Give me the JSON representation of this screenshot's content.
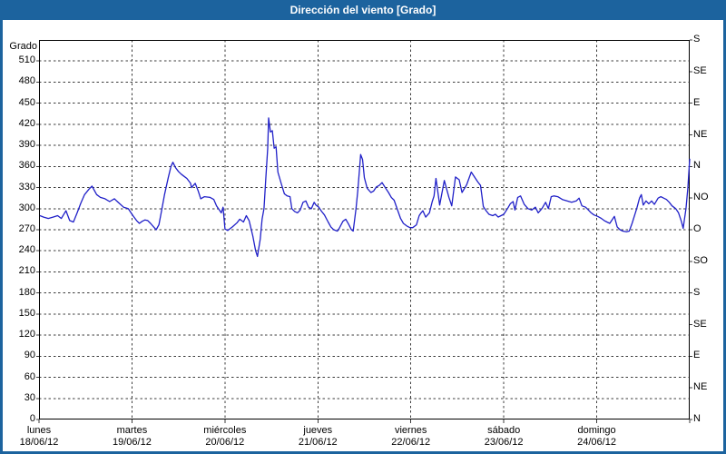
{
  "window": {
    "title": "Dirección del viento [Grado]"
  },
  "colors": {
    "frame_blue": "#1c639e",
    "title_text": "#ffffff",
    "line_blue": "#2020c8",
    "grid_black": "#3c3c3c",
    "background": "#ffffff"
  },
  "chart_data": {
    "type": "line",
    "title": "Dirección del viento [Grado]",
    "ylabel_left": "Grado",
    "ylim": [
      0,
      540
    ],
    "left_tick_step": 30,
    "left_tick_values": [
      510,
      480,
      450,
      420,
      390,
      360,
      330,
      300,
      270,
      240,
      210,
      180,
      150,
      120,
      90,
      60,
      30,
      0
    ],
    "right_axis": {
      "tick_values": [
        540,
        495,
        450,
        405,
        360,
        315,
        270,
        225,
        180,
        135,
        90,
        45,
        0
      ],
      "labels": [
        "S",
        "SE",
        "E",
        "NE",
        "N",
        "NO",
        "O",
        "SO",
        "S",
        "SE",
        "E",
        "NE",
        "N"
      ]
    },
    "x_axis_days": [
      {
        "label": "lunes",
        "date": "18/06/12"
      },
      {
        "label": "martes",
        "date": "19/06/12"
      },
      {
        "label": "miércoles",
        "date": "20/06/12"
      },
      {
        "label": "jueves",
        "date": "21/06/12"
      },
      {
        "label": "viernes",
        "date": "22/06/12"
      },
      {
        "label": "sábado",
        "date": "23/06/12"
      },
      {
        "label": "domingo",
        "date": "24/06/12"
      }
    ],
    "grid": "dashed",
    "legend": "none",
    "series": [
      {
        "name": "Dirección del viento",
        "units": "Grado",
        "points": [
          [
            0.01,
            290
          ],
          [
            0.05,
            288
          ],
          [
            0.1,
            286
          ],
          [
            0.15,
            288
          ],
          [
            0.2,
            290
          ],
          [
            0.24,
            286
          ],
          [
            0.29,
            297
          ],
          [
            0.33,
            283
          ],
          [
            0.37,
            281
          ],
          [
            0.41,
            294
          ],
          [
            0.45,
            308
          ],
          [
            0.49,
            320
          ],
          [
            0.54,
            328
          ],
          [
            0.57,
            332
          ],
          [
            0.62,
            320
          ],
          [
            0.66,
            316
          ],
          [
            0.71,
            314
          ],
          [
            0.76,
            310
          ],
          [
            0.81,
            314
          ],
          [
            0.86,
            308
          ],
          [
            0.91,
            302
          ],
          [
            0.96,
            300
          ],
          [
            1.01,
            290
          ],
          [
            1.05,
            283
          ],
          [
            1.08,
            279
          ],
          [
            1.11,
            282
          ],
          [
            1.14,
            284
          ],
          [
            1.17,
            283
          ],
          [
            1.2,
            279
          ],
          [
            1.24,
            273
          ],
          [
            1.26,
            270
          ],
          [
            1.29,
            277
          ],
          [
            1.32,
            298
          ],
          [
            1.35,
            320
          ],
          [
            1.39,
            344
          ],
          [
            1.42,
            360
          ],
          [
            1.44,
            366
          ],
          [
            1.47,
            358
          ],
          [
            1.5,
            353
          ],
          [
            1.53,
            349
          ],
          [
            1.56,
            346
          ],
          [
            1.59,
            343
          ],
          [
            1.63,
            336
          ],
          [
            1.64,
            330
          ],
          [
            1.68,
            336
          ],
          [
            1.71,
            326
          ],
          [
            1.74,
            314
          ],
          [
            1.78,
            317
          ],
          [
            1.84,
            316
          ],
          [
            1.88,
            313
          ],
          [
            1.91,
            304
          ],
          [
            1.94,
            298
          ],
          [
            1.96,
            294
          ],
          [
            1.98,
            302
          ],
          [
            2.0,
            271
          ],
          [
            2.03,
            269
          ],
          [
            2.08,
            274
          ],
          [
            2.13,
            280
          ],
          [
            2.16,
            285
          ],
          [
            2.2,
            281
          ],
          [
            2.23,
            290
          ],
          [
            2.26,
            283
          ],
          [
            2.3,
            261
          ],
          [
            2.33,
            240
          ],
          [
            2.35,
            232
          ],
          [
            2.38,
            257
          ],
          [
            2.4,
            285
          ],
          [
            2.42,
            300
          ],
          [
            2.44,
            343
          ],
          [
            2.46,
            386
          ],
          [
            2.47,
            429
          ],
          [
            2.49,
            409
          ],
          [
            2.51,
            411
          ],
          [
            2.53,
            386
          ],
          [
            2.55,
            388
          ],
          [
            2.57,
            352
          ],
          [
            2.61,
            334
          ],
          [
            2.64,
            321
          ],
          [
            2.67,
            318
          ],
          [
            2.7,
            317
          ],
          [
            2.72,
            300
          ],
          [
            2.75,
            296
          ],
          [
            2.78,
            294
          ],
          [
            2.81,
            298
          ],
          [
            2.84,
            309
          ],
          [
            2.87,
            311
          ],
          [
            2.9,
            302
          ],
          [
            2.93,
            300
          ],
          [
            2.96,
            309
          ],
          [
            2.98,
            305
          ],
          [
            3.01,
            302
          ],
          [
            3.04,
            296
          ],
          [
            3.07,
            291
          ],
          [
            3.11,
            281
          ],
          [
            3.14,
            274
          ],
          [
            3.17,
            270
          ],
          [
            3.21,
            268
          ],
          [
            3.23,
            272
          ],
          [
            3.27,
            282
          ],
          [
            3.3,
            285
          ],
          [
            3.33,
            278
          ],
          [
            3.36,
            270
          ],
          [
            3.38,
            268
          ],
          [
            3.41,
            300
          ],
          [
            3.43,
            326
          ],
          [
            3.45,
            360
          ],
          [
            3.46,
            377
          ],
          [
            3.48,
            370
          ],
          [
            3.5,
            344
          ],
          [
            3.53,
            329
          ],
          [
            3.57,
            323
          ],
          [
            3.6,
            325
          ],
          [
            3.63,
            331
          ],
          [
            3.66,
            333
          ],
          [
            3.69,
            337
          ],
          [
            3.72,
            331
          ],
          [
            3.76,
            323
          ],
          [
            3.79,
            316
          ],
          [
            3.82,
            312
          ],
          [
            3.86,
            297
          ],
          [
            3.89,
            286
          ],
          [
            3.92,
            279
          ],
          [
            3.96,
            275
          ],
          [
            3.99,
            273
          ],
          [
            4.02,
            273
          ],
          [
            4.06,
            277
          ],
          [
            4.09,
            290
          ],
          [
            4.11,
            294
          ],
          [
            4.13,
            297
          ],
          [
            4.16,
            288
          ],
          [
            4.2,
            294
          ],
          [
            4.23,
            310
          ],
          [
            4.25,
            318
          ],
          [
            4.27,
            343
          ],
          [
            4.31,
            305
          ],
          [
            4.36,
            340
          ],
          [
            4.41,
            316
          ],
          [
            4.44,
            304
          ],
          [
            4.48,
            345
          ],
          [
            4.52,
            341
          ],
          [
            4.55,
            323
          ],
          [
            4.6,
            334
          ],
          [
            4.65,
            352
          ],
          [
            4.72,
            338
          ],
          [
            4.75,
            333
          ],
          [
            4.78,
            303
          ],
          [
            4.81,
            297
          ],
          [
            4.84,
            292
          ],
          [
            4.88,
            290
          ],
          [
            4.91,
            292
          ],
          [
            4.94,
            288
          ],
          [
            4.97,
            290
          ],
          [
            5.0,
            292
          ],
          [
            5.04,
            300
          ],
          [
            5.07,
            307
          ],
          [
            5.1,
            310
          ],
          [
            5.12,
            298
          ],
          [
            5.15,
            316
          ],
          [
            5.18,
            318
          ],
          [
            5.22,
            306
          ],
          [
            5.26,
            300
          ],
          [
            5.3,
            298
          ],
          [
            5.34,
            302
          ],
          [
            5.37,
            294
          ],
          [
            5.41,
            300
          ],
          [
            5.45,
            309
          ],
          [
            5.48,
            300
          ],
          [
            5.51,
            317
          ],
          [
            5.54,
            318
          ],
          [
            5.58,
            317
          ],
          [
            5.63,
            313
          ],
          [
            5.68,
            311
          ],
          [
            5.73,
            309
          ],
          [
            5.78,
            311
          ],
          [
            5.81,
            315
          ],
          [
            5.84,
            304
          ],
          [
            5.88,
            302
          ],
          [
            5.91,
            298
          ],
          [
            5.94,
            294
          ],
          [
            5.97,
            291
          ],
          [
            6.01,
            289
          ],
          [
            6.05,
            286
          ],
          [
            6.08,
            283
          ],
          [
            6.11,
            281
          ],
          [
            6.14,
            279
          ],
          [
            6.16,
            283
          ],
          [
            6.19,
            289
          ],
          [
            6.22,
            274
          ],
          [
            6.25,
            270
          ],
          [
            6.28,
            268
          ],
          [
            6.32,
            267
          ],
          [
            6.35,
            268
          ],
          [
            6.38,
            279
          ],
          [
            6.42,
            296
          ],
          [
            6.43,
            300
          ],
          [
            6.46,
            315
          ],
          [
            6.48,
            320
          ],
          [
            6.5,
            305
          ],
          [
            6.53,
            311
          ],
          [
            6.56,
            307
          ],
          [
            6.59,
            311
          ],
          [
            6.62,
            306
          ],
          [
            6.66,
            315
          ],
          [
            6.69,
            317
          ],
          [
            6.72,
            315
          ],
          [
            6.75,
            313
          ],
          [
            6.78,
            309
          ],
          [
            6.81,
            304
          ],
          [
            6.85,
            300
          ],
          [
            6.88,
            294
          ],
          [
            6.91,
            282
          ],
          [
            6.93,
            272
          ],
          [
            6.96,
            300
          ],
          [
            6.98,
            330
          ],
          [
            7.0,
            371
          ]
        ]
      }
    ]
  }
}
